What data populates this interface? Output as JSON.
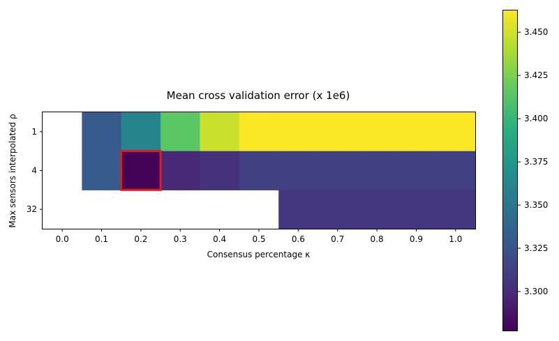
{
  "chart_data": {
    "type": "heatmap",
    "title": "Mean cross validation error (x 1e6)",
    "xlabel": "Consensus percentage κ",
    "ylabel": "Max sensors interpolated ρ",
    "x_tick_labels": [
      "0.0",
      "0.1",
      "0.2",
      "0.3",
      "0.4",
      "0.5",
      "0.6",
      "0.7",
      "0.8",
      "0.9",
      "1.0"
    ],
    "y_tick_labels": [
      "1",
      "4",
      "32"
    ],
    "x": [
      0.0,
      0.1,
      0.2,
      0.3,
      0.4,
      0.5,
      0.6,
      0.7,
      0.8,
      0.9,
      1.0
    ],
    "y": [
      1,
      4,
      32
    ],
    "values": [
      [
        null,
        3.33,
        3.36,
        3.415,
        3.448,
        3.462,
        3.462,
        3.462,
        3.462,
        3.462,
        3.462
      ],
      [
        null,
        3.33,
        3.278,
        3.298,
        3.303,
        3.312,
        3.312,
        3.312,
        3.312,
        3.312,
        3.312
      ],
      [
        null,
        null,
        null,
        null,
        null,
        null,
        3.306,
        3.306,
        3.306,
        3.306,
        3.306
      ]
    ],
    "highlight": {
      "x": 0.2,
      "y": 4,
      "color": "#e31a1c"
    },
    "colorbar": {
      "vmin": 3.277,
      "vmax": 3.463,
      "ticks": [
        3.3,
        3.325,
        3.35,
        3.375,
        3.4,
        3.425,
        3.45
      ],
      "tick_labels": [
        "3.300",
        "3.325",
        "3.350",
        "3.375",
        "3.400",
        "3.425",
        "3.450"
      ],
      "colormap": "viridis"
    },
    "grid": false
  }
}
